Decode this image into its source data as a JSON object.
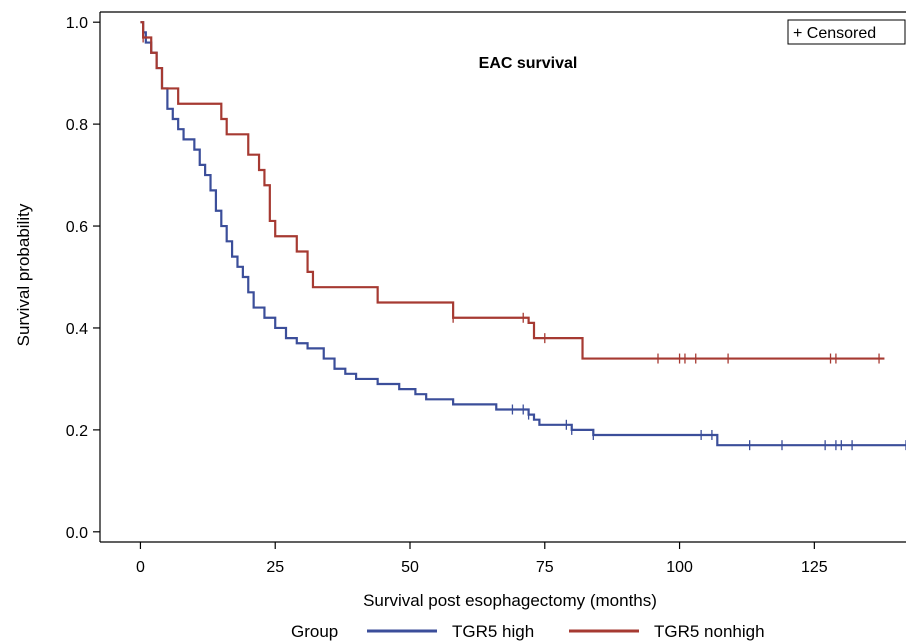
{
  "chart_data": {
    "type": "line",
    "title": "EAC survival",
    "xlabel": "Survival post esophagectomy (months)",
    "ylabel": "Survival probability",
    "xlim": [
      -7.5,
      142
    ],
    "ylim": [
      -0.02,
      1.02
    ],
    "xticks": [
      0,
      25,
      50,
      75,
      100,
      125
    ],
    "yticks": [
      0.0,
      0.2,
      0.4,
      0.6,
      0.8,
      1.0
    ],
    "xtick_labels": [
      "0",
      "25",
      "50",
      "75",
      "100",
      "125"
    ],
    "ytick_labels": [
      "0.0",
      "0.2",
      "0.4",
      "0.6",
      "0.8",
      "1.0"
    ],
    "censor_legend": "+ Censored",
    "legend_title": "Group",
    "legend_position": "bottom",
    "series": [
      {
        "name": "TGR5 high",
        "color": "#3b4e9a",
        "steps": [
          [
            0,
            1.0
          ],
          [
            0.5,
            0.98
          ],
          [
            1,
            0.96
          ],
          [
            2,
            0.94
          ],
          [
            3,
            0.91
          ],
          [
            4,
            0.87
          ],
          [
            5,
            0.83
          ],
          [
            6,
            0.81
          ],
          [
            7,
            0.79
          ],
          [
            8,
            0.77
          ],
          [
            10,
            0.75
          ],
          [
            11,
            0.72
          ],
          [
            12,
            0.7
          ],
          [
            13,
            0.67
          ],
          [
            14,
            0.63
          ],
          [
            15,
            0.6
          ],
          [
            16,
            0.57
          ],
          [
            17,
            0.54
          ],
          [
            18,
            0.52
          ],
          [
            19,
            0.5
          ],
          [
            20,
            0.47
          ],
          [
            21,
            0.44
          ],
          [
            23,
            0.42
          ],
          [
            25,
            0.4
          ],
          [
            27,
            0.38
          ],
          [
            29,
            0.37
          ],
          [
            31,
            0.36
          ],
          [
            34,
            0.34
          ],
          [
            36,
            0.32
          ],
          [
            38,
            0.31
          ],
          [
            40,
            0.3
          ],
          [
            44,
            0.29
          ],
          [
            48,
            0.28
          ],
          [
            51,
            0.27
          ],
          [
            53,
            0.26
          ],
          [
            58,
            0.25
          ],
          [
            66,
            0.24
          ],
          [
            72,
            0.23
          ],
          [
            73,
            0.22
          ],
          [
            74,
            0.21
          ],
          [
            80,
            0.2
          ],
          [
            84,
            0.19
          ],
          [
            107,
            0.17
          ]
        ],
        "end": 142,
        "censored": [
          69,
          71,
          72,
          79,
          80,
          84,
          104,
          106,
          113,
          119,
          127,
          129,
          130,
          132,
          142
        ]
      },
      {
        "name": "TGR5 nonhigh",
        "color": "#a63a32",
        "steps": [
          [
            0,
            1.0
          ],
          [
            0.5,
            0.97
          ],
          [
            2,
            0.94
          ],
          [
            3,
            0.91
          ],
          [
            4,
            0.87
          ],
          [
            7,
            0.84
          ],
          [
            15,
            0.81
          ],
          [
            16,
            0.78
          ],
          [
            20,
            0.74
          ],
          [
            22,
            0.71
          ],
          [
            23,
            0.68
          ],
          [
            24,
            0.61
          ],
          [
            25,
            0.58
          ],
          [
            29,
            0.55
          ],
          [
            31,
            0.51
          ],
          [
            32,
            0.48
          ],
          [
            44,
            0.45
          ],
          [
            58,
            0.42
          ],
          [
            72,
            0.41
          ],
          [
            73,
            0.38
          ],
          [
            82,
            0.34
          ]
        ],
        "end": 138,
        "censored": [
          0.5,
          58,
          71,
          75,
          96,
          100,
          101,
          103,
          109,
          128,
          129,
          137
        ]
      }
    ]
  }
}
